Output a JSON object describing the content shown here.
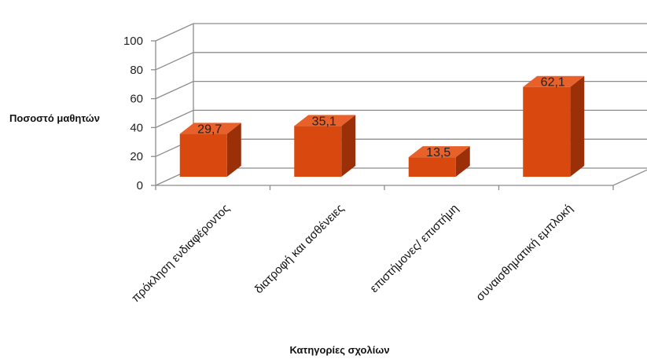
{
  "chart_data": {
    "type": "bar",
    "categories": [
      "πρόκληση ενδιαφέροντος",
      "διατροφή και ασθένειες",
      "επιστήμονες/ επιστήμη",
      "συναισθηματική εμπλοκή"
    ],
    "values": [
      29.7,
      35.1,
      13.5,
      62.1
    ],
    "value_labels": [
      "29,7",
      "35,1",
      "13,5",
      "62,1"
    ],
    "title": "",
    "xlabel": "Κατηγορίες σχολίων",
    "ylabel": "Ποσοστό μαθητών",
    "ylim": [
      0,
      100
    ],
    "yticks": [
      "0",
      "20",
      "40",
      "60",
      "80",
      "100"
    ],
    "grid": true,
    "bar_style": "3d",
    "colors": {
      "bar_front": "#D9480F",
      "bar_top": "#E8602A",
      "bar_side": "#9B3008",
      "grid": "#8c8c8c"
    }
  }
}
